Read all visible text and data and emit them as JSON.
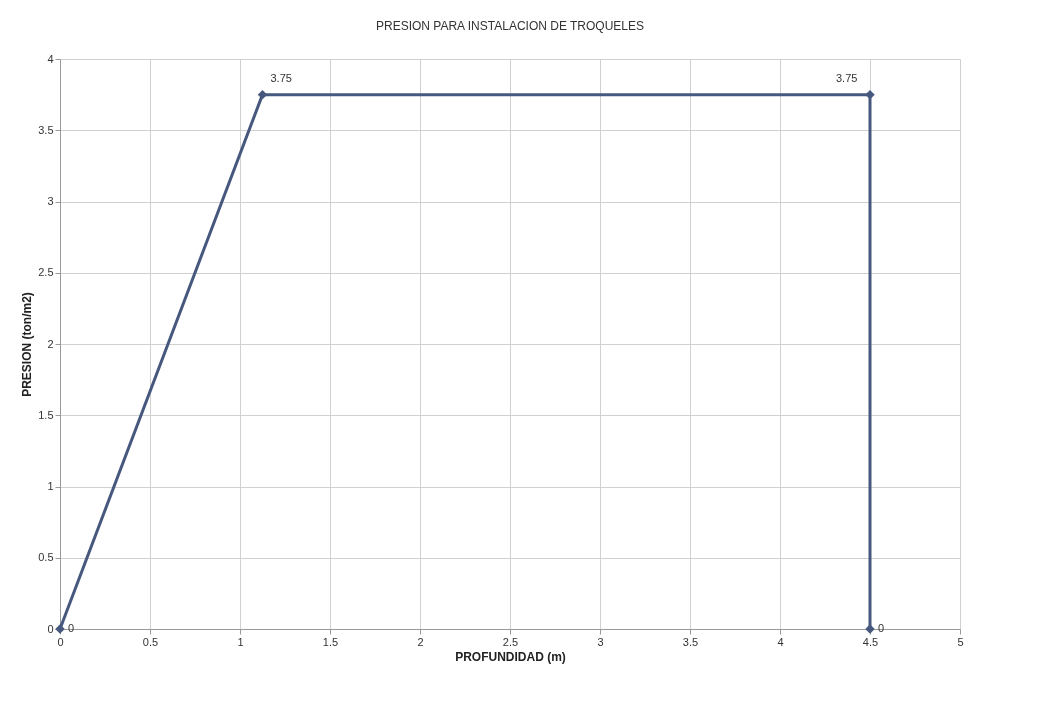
{
  "chart_data": {
    "type": "line",
    "title": "PRESION PARA INSTALACION DE TROQUELES",
    "xlabel": "PROFUNDIDAD (m)",
    "ylabel": "PRESION (ton/m2)",
    "x": [
      0,
      1.125,
      4.5,
      4.5
    ],
    "series": [
      {
        "color": "#47587e",
        "values": [
          0,
          3.75,
          3.75,
          0
        ]
      }
    ],
    "xlim": [
      0,
      5
    ],
    "xticks": [
      0,
      0.5,
      1,
      1.5,
      2,
      2.5,
      3,
      3.5,
      4,
      4.5,
      5
    ],
    "ylim": [
      0,
      4
    ],
    "yticks": [
      0,
      0.5,
      1,
      1.5,
      2,
      2.5,
      3,
      3.5,
      4
    ],
    "grid": true,
    "marker": "diamond",
    "line_style": "solid",
    "data_labels": true
  }
}
